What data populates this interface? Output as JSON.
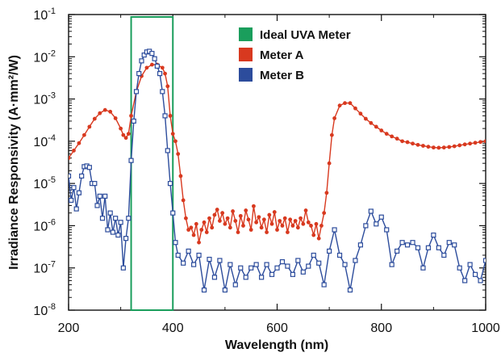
{
  "chart_data": {
    "type": "line",
    "xlabel": "Wavelength (nm)",
    "ylabel": "Irradiance Responsivity (A·mm²/W)",
    "xlim": [
      200,
      1000
    ],
    "ylim_log10": [
      -8,
      -1
    ],
    "yscale": "log",
    "x_ticks": [
      200,
      400,
      600,
      800,
      1000
    ],
    "x_tick_labels": [
      "200",
      "400",
      "600",
      "800",
      "1000"
    ],
    "y_tick_base": "10",
    "y_tick_exponents": [
      "-8",
      "-7",
      "-6",
      "-5",
      "-4",
      "-3",
      "-2",
      "-1"
    ],
    "legend_position": "top-center",
    "ideal_window": {
      "name": "Ideal UVA Meter",
      "x_start": 320,
      "x_end": 400,
      "color": "#1a9e5c"
    },
    "series": [
      {
        "name": "Meter A",
        "color": "#d8391f",
        "marker": "dot",
        "x": [
          200,
          210,
          220,
          230,
          240,
          250,
          260,
          270,
          280,
          290,
          300,
          305,
          310,
          315,
          320,
          330,
          340,
          350,
          360,
          370,
          380,
          385,
          390,
          395,
          400,
          405,
          410,
          415,
          420,
          425,
          430,
          435,
          440,
          445,
          450,
          455,
          460,
          465,
          470,
          475,
          480,
          485,
          490,
          495,
          500,
          505,
          510,
          515,
          520,
          525,
          530,
          535,
          540,
          545,
          550,
          555,
          560,
          565,
          570,
          575,
          580,
          585,
          590,
          595,
          600,
          605,
          610,
          615,
          620,
          625,
          630,
          635,
          640,
          645,
          650,
          655,
          660,
          665,
          670,
          675,
          680,
          685,
          690,
          695,
          700,
          705,
          710,
          720,
          730,
          740,
          750,
          760,
          770,
          780,
          790,
          800,
          810,
          820,
          830,
          840,
          850,
          860,
          870,
          880,
          890,
          900,
          910,
          920,
          930,
          940,
          950,
          960,
          970,
          980,
          990,
          1000
        ],
        "y": [
          4e-05,
          6e-05,
          9e-05,
          0.00014,
          0.00022,
          0.00034,
          0.00046,
          0.00055,
          0.0005,
          0.00035,
          0.0002,
          0.00014,
          0.00012,
          0.00015,
          0.0004,
          0.0015,
          0.0035,
          0.0055,
          0.0065,
          0.0065,
          0.0055,
          0.004,
          0.002,
          0.0004,
          0.00015,
          0.0001,
          5e-05,
          1.5e-05,
          4e-06,
          1.5e-06,
          8e-07,
          9e-07,
          6e-07,
          1.1e-06,
          4e-07,
          8e-07,
          1.2e-06,
          7e-07,
          1.5e-06,
          9e-07,
          1.8e-06,
          2.4e-06,
          1.3e-06,
          2e-06,
          1.1e-06,
          1.5e-06,
          9e-07,
          2.2e-06,
          1.3e-06,
          7e-07,
          1.7e-06,
          1e-06,
          2.3e-06,
          1.4e-06,
          8e-07,
          2.9e-06,
          1.2e-06,
          1.6e-06,
          9e-07,
          1.4e-06,
          7e-07,
          1.8e-06,
          1.1e-06,
          2.1e-06,
          8e-07,
          1.3e-06,
          1e-06,
          1.5e-06,
          7e-07,
          1.4e-06,
          1e-06,
          1.3e-06,
          9e-07,
          1.5e-06,
          1.1e-06,
          2.3e-06,
          1.2e-06,
          1e-06,
          6e-07,
          1.1e-06,
          5e-07,
          1e-06,
          2e-06,
          6e-06,
          3e-05,
          0.00014,
          0.00035,
          0.0007,
          0.0008,
          0.0008,
          0.0006,
          0.00045,
          0.00034,
          0.00027,
          0.00022,
          0.00018,
          0.00015,
          0.00013,
          0.000115,
          0.0001,
          9.5e-05,
          8.8e-05,
          8.2e-05,
          7.8e-05,
          7.4e-05,
          7.1e-05,
          7e-05,
          7.1e-05,
          7.3e-05,
          7.6e-05,
          8e-05,
          8.4e-05,
          8.8e-05,
          9.2e-05,
          9.6e-05,
          0.0001
        ]
      },
      {
        "name": "Meter B",
        "color": "#2c4c9c",
        "marker": "square",
        "x": [
          200,
          205,
          210,
          215,
          220,
          225,
          230,
          235,
          240,
          245,
          250,
          255,
          260,
          265,
          270,
          275,
          280,
          285,
          290,
          295,
          300,
          305,
          310,
          315,
          320,
          325,
          330,
          335,
          340,
          345,
          350,
          355,
          360,
          365,
          370,
          375,
          380,
          385,
          390,
          395,
          400,
          405,
          410,
          420,
          430,
          440,
          450,
          460,
          470,
          480,
          490,
          500,
          510,
          520,
          530,
          540,
          550,
          560,
          570,
          580,
          590,
          600,
          610,
          620,
          630,
          640,
          650,
          660,
          670,
          680,
          690,
          700,
          710,
          720,
          730,
          740,
          750,
          760,
          770,
          780,
          790,
          800,
          810,
          820,
          830,
          840,
          850,
          860,
          870,
          880,
          890,
          900,
          910,
          920,
          930,
          940,
          950,
          960,
          970,
          980,
          990,
          1000
        ],
        "y": [
          1.5e-05,
          4e-06,
          8e-06,
          2.5e-06,
          6e-06,
          1.5e-05,
          2.5e-05,
          2.6e-05,
          2.4e-05,
          1e-05,
          1e-05,
          3e-06,
          5e-06,
          1.5e-06,
          5e-06,
          8e-07,
          2e-06,
          7e-07,
          1.5e-06,
          6e-07,
          1.2e-06,
          1e-07,
          5e-07,
          1.5e-06,
          3.5e-05,
          0.0003,
          0.0015,
          0.004,
          0.008,
          0.011,
          0.013,
          0.0135,
          0.012,
          0.009,
          0.006,
          0.004,
          0.0015,
          0.0004,
          6e-05,
          1e-05,
          2e-06,
          4e-07,
          2e-07,
          1.3e-07,
          2.5e-07,
          1.2e-07,
          2e-07,
          3e-08,
          1.6e-07,
          6e-08,
          1.5e-07,
          3e-08,
          1.2e-07,
          4e-08,
          1e-07,
          6e-08,
          1e-07,
          1.2e-07,
          6e-08,
          1.2e-07,
          7e-08,
          1e-07,
          1.4e-07,
          1.1e-07,
          7e-08,
          1.5e-07,
          8e-08,
          1.1e-07,
          2e-07,
          1.3e-07,
          4e-08,
          2.5e-07,
          8e-07,
          2e-07,
          1.2e-07,
          3e-08,
          1.5e-07,
          3.5e-07,
          1e-06,
          2.2e-06,
          1.1e-06,
          1.6e-06,
          8e-07,
          1.2e-07,
          2.5e-07,
          4e-07,
          3.5e-07,
          4e-07,
          3e-07,
          1e-07,
          3e-07,
          6e-07,
          3e-07,
          2e-07,
          4e-07,
          3.5e-07,
          1e-07,
          5e-08,
          1.2e-07,
          7e-08,
          5e-08,
          1.5e-07
        ]
      }
    ]
  }
}
